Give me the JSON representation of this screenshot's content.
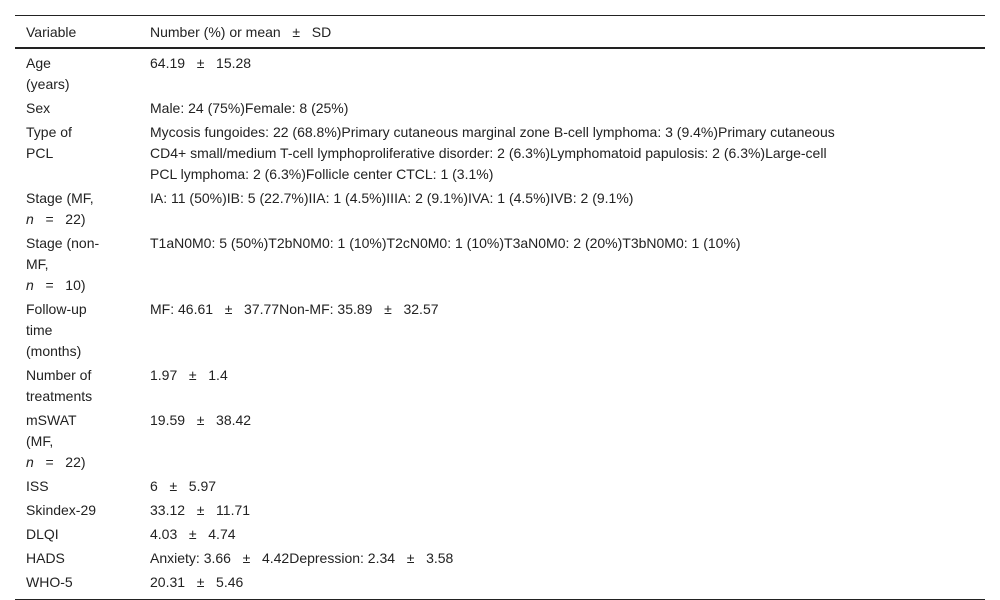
{
  "header": {
    "col1": "Variable",
    "col2": "Number (%) or mean   ±   SD"
  },
  "rows": [
    {
      "label": [
        "Age",
        "(years)"
      ],
      "value": [
        "64.19   ±   15.28"
      ]
    },
    {
      "label": [
        "Sex"
      ],
      "value": [
        "Male: 24 (75%)Female: 8 (25%)"
      ]
    },
    {
      "label": [
        "Type of",
        "PCL"
      ],
      "value": [
        "Mycosis fungoides: 22 (68.8%)Primary cutaneous marginal zone B-cell lymphoma: 3 (9.4%)Primary cutaneous",
        "CD4+ small/medium T-cell lymphoproliferative disorder: 2 (6.3%)Lymphomatoid papulosis: 2 (6.3%)Large-cell",
        "PCL lymphoma: 2 (6.3%)Follicle center CTCL: 1 (3.1%)"
      ]
    },
    {
      "label": [
        "Stage (MF,",
        "n   =   22)"
      ],
      "value": [
        "IA: 11 (50%)IB: 5 (22.7%)IIA: 1 (4.5%)IIIA: 2 (9.1%)IVA: 1 (4.5%)IVB: 2 (9.1%)"
      ]
    },
    {
      "label": [
        "Stage (non-",
        "MF,",
        "n   =   10)"
      ],
      "value": [
        "T1aN0M0: 5 (50%)T2bN0M0: 1 (10%)T2cN0M0: 1 (10%)T3aN0M0: 2 (20%)T3bN0M0: 1 (10%)"
      ]
    },
    {
      "label": [
        "Follow-up",
        "time",
        "(months)"
      ],
      "value": [
        "MF: 46.61   ±   37.77Non-MF: 35.89   ±   32.57"
      ]
    },
    {
      "label": [
        "Number of",
        "treatments"
      ],
      "value": [
        "1.97   ±   1.4"
      ]
    },
    {
      "label": [
        "mSWAT",
        "(MF,",
        "n   =   22)"
      ],
      "value": [
        "19.59   ±   38.42"
      ]
    },
    {
      "label": [
        "ISS"
      ],
      "value": [
        "6   ±   5.97"
      ]
    },
    {
      "label": [
        "Skindex-29"
      ],
      "value": [
        "33.12   ±   11.71"
      ]
    },
    {
      "label": [
        "DLQI"
      ],
      "value": [
        "4.03   ±   4.74"
      ]
    },
    {
      "label": [
        "HADS"
      ],
      "value": [
        "Anxiety: 3.66   ±   4.42Depression: 2.34   ±   3.58"
      ]
    },
    {
      "label": [
        "WHO-5"
      ],
      "value": [
        "20.31   ±   5.46"
      ]
    }
  ]
}
